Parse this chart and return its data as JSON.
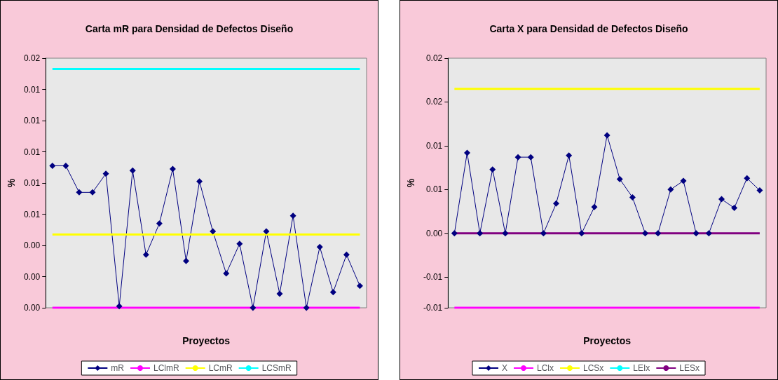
{
  "chart_data": [
    {
      "type": "line",
      "title": "Carta mR para Densidad de Defectos Diseño",
      "xlabel": "Proyectos",
      "ylabel": "%",
      "legend": "bottom",
      "categories": [
        null,
        null,
        null,
        null,
        null,
        null,
        null,
        null,
        null,
        null,
        null,
        null,
        null,
        null,
        null,
        null,
        null,
        null,
        null,
        null,
        null,
        null,
        null,
        null
      ],
      "ylim": [
        0,
        0.016
      ],
      "yticks": [
        {
          "value": 0,
          "label": "0.00"
        },
        {
          "value": 0.002,
          "label": "0.00"
        },
        {
          "value": 0.004,
          "label": "0.00"
        },
        {
          "value": 0.006,
          "label": "0.01"
        },
        {
          "value": 0.008,
          "label": "0.01"
        },
        {
          "value": 0.01,
          "label": "0.01"
        },
        {
          "value": 0.012,
          "label": "0.01"
        },
        {
          "value": 0.014,
          "label": "0.01"
        },
        {
          "value": 0.016,
          "label": "0.02"
        }
      ],
      "series": [
        {
          "name": "mR",
          "color": "#000080",
          "marker": "diamond",
          "values": [
            0.0091,
            0.0091,
            0.0074,
            0.0074,
            0.0086,
            0.0001,
            0.0088,
            0.0034,
            0.0054,
            0.0089,
            0.003,
            0.0081,
            0.0049,
            0.0022,
            0.0041,
            0,
            0.0049,
            0.0009,
            0.0059,
            0,
            0.0039,
            0.001,
            0.0034,
            0.0014
          ]
        },
        {
          "name": "LClmR",
          "color": "#ff00ff",
          "marker": "none",
          "values": [
            0,
            0,
            0,
            0,
            0,
            0,
            0,
            0,
            0,
            0,
            0,
            0,
            0,
            0,
            0,
            0,
            0,
            0,
            0,
            0,
            0,
            0,
            0,
            0
          ]
        },
        {
          "name": "LCmR",
          "color": "#ffff00",
          "marker": "none",
          "values": [
            0.0047,
            0.0047,
            0.0047,
            0.0047,
            0.0047,
            0.0047,
            0.0047,
            0.0047,
            0.0047,
            0.0047,
            0.0047,
            0.0047,
            0.0047,
            0.0047,
            0.0047,
            0.0047,
            0.0047,
            0.0047,
            0.0047,
            0.0047,
            0.0047,
            0.0047,
            0.0047,
            0.0047
          ]
        },
        {
          "name": "LCSmR",
          "color": "#00ffff",
          "marker": "none",
          "values": [
            0.0153,
            0.0153,
            0.0153,
            0.0153,
            0.0153,
            0.0153,
            0.0153,
            0.0153,
            0.0153,
            0.0153,
            0.0153,
            0.0153,
            0.0153,
            0.0153,
            0.0153,
            0.0153,
            0.0153,
            0.0153,
            0.0153,
            0.0153,
            0.0153,
            0.0153,
            0.0153,
            0.0153
          ]
        }
      ]
    },
    {
      "type": "line",
      "title": "Carta X para Densidad de Defectos Diseño",
      "xlabel": "Proyectos",
      "ylabel": "%",
      "legend": "bottom",
      "categories": [
        null,
        null,
        null,
        null,
        null,
        null,
        null,
        null,
        null,
        null,
        null,
        null,
        null,
        null,
        null,
        null,
        null,
        null,
        null,
        null,
        null,
        null,
        null,
        null,
        null
      ],
      "ylim": [
        -0.0085,
        0.02
      ],
      "yticks": [
        {
          "value": -0.0085,
          "label": "-0.01"
        },
        {
          "value": -0.005,
          "label": "-0.01"
        },
        {
          "value": 0,
          "label": "0.00"
        },
        {
          "value": 0.005,
          "label": "0.01"
        },
        {
          "value": 0.01,
          "label": "0.01"
        },
        {
          "value": 0.015,
          "label": "0.02"
        },
        {
          "value": 0.02,
          "label": "0.02"
        }
      ],
      "series": [
        {
          "name": "X",
          "color": "#000080",
          "marker": "diamond",
          "values": [
            0,
            0.0092,
            0,
            0.0073,
            0,
            0.0087,
            0.0087,
            0,
            0.0034,
            0.0089,
            0,
            0.003,
            0.0112,
            0.0062,
            0.0041,
            0,
            0,
            0.005,
            0.006,
            0,
            0,
            0.0039,
            0.0029,
            0.0063,
            0.0049
          ]
        },
        {
          "name": "LClx",
          "color": "#ff00ff",
          "marker": "none",
          "values": [
            -0.0085,
            -0.0085,
            -0.0085,
            -0.0085,
            -0.0085,
            -0.0085,
            -0.0085,
            -0.0085,
            -0.0085,
            -0.0085,
            -0.0085,
            -0.0085,
            -0.0085,
            -0.0085,
            -0.0085,
            -0.0085,
            -0.0085,
            -0.0085,
            -0.0085,
            -0.0085,
            -0.0085,
            -0.0085,
            -0.0085,
            -0.0085,
            -0.0085
          ]
        },
        {
          "name": "LCSx",
          "color": "#ffff00",
          "marker": "none",
          "values": [
            0.0165,
            0.0165,
            0.0165,
            0.0165,
            0.0165,
            0.0165,
            0.0165,
            0.0165,
            0.0165,
            0.0165,
            0.0165,
            0.0165,
            0.0165,
            0.0165,
            0.0165,
            0.0165,
            0.0165,
            0.0165,
            0.0165,
            0.0165,
            0.0165,
            0.0165,
            0.0165,
            0.0165,
            0.0165
          ]
        },
        {
          "name": "LEIx",
          "color": "#00ffff",
          "marker": "none",
          "values": [
            null,
            null,
            null,
            null,
            null,
            null,
            null,
            null,
            null,
            null,
            null,
            null,
            null,
            null,
            null,
            null,
            null,
            null,
            null,
            null,
            null,
            null,
            null,
            null,
            null
          ]
        },
        {
          "name": "LESx",
          "color": "#800080",
          "marker": "none",
          "values": [
            0,
            0,
            0,
            0,
            0,
            0,
            0,
            0,
            0,
            0,
            0,
            0,
            0,
            0,
            0,
            0,
            0,
            0,
            0,
            0,
            0,
            0,
            0,
            0,
            0
          ]
        }
      ]
    }
  ]
}
